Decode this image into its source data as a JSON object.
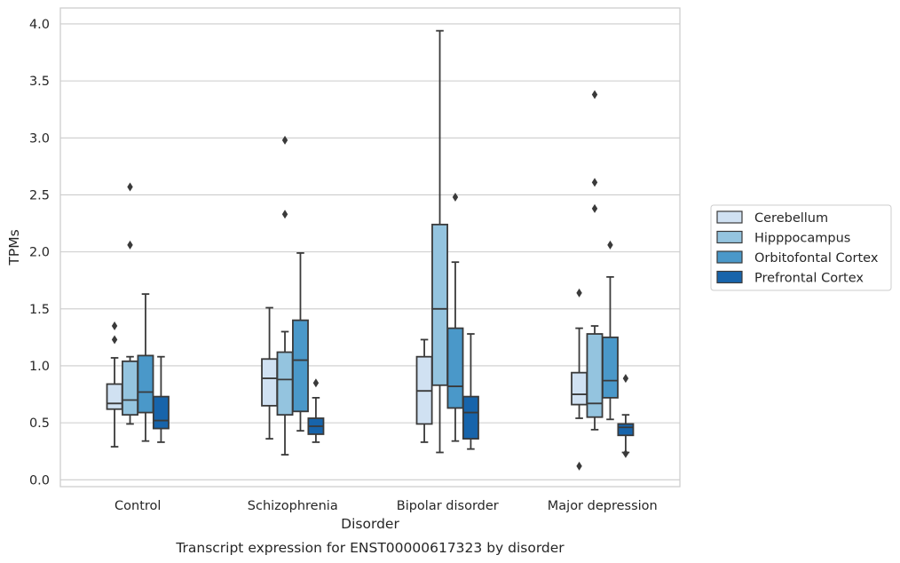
{
  "chart_data": {
    "type": "box",
    "title": "Transcript expression for ENST00000617323 by disorder",
    "xlabel": "Disorder",
    "ylabel": "TPMs",
    "ylim": [
      -0.06,
      4.14
    ],
    "yticks": [
      "0.0",
      "0.5",
      "1.0",
      "1.5",
      "2.0",
      "2.5",
      "3.0",
      "3.5",
      "4.0"
    ],
    "categories": [
      "Control",
      "Schizophrenia",
      "Bipolar disorder",
      "Major depression"
    ],
    "grid": true,
    "legend_position": "right",
    "series": [
      {
        "name": "Cerebellum",
        "color": "#d0e1f2",
        "boxes": [
          {
            "whislo": 0.29,
            "q1": 0.62,
            "med": 0.67,
            "q3": 0.84,
            "whishi": 1.07,
            "fliers": [
              1.23,
              1.35
            ]
          },
          {
            "whislo": 0.36,
            "q1": 0.65,
            "med": 0.89,
            "q3": 1.06,
            "whishi": 1.51,
            "fliers": []
          },
          {
            "whislo": 0.33,
            "q1": 0.49,
            "med": 0.78,
            "q3": 1.08,
            "whishi": 1.23,
            "fliers": []
          },
          {
            "whislo": 0.54,
            "q1": 0.66,
            "med": 0.75,
            "q3": 0.94,
            "whishi": 1.33,
            "fliers": [
              0.12,
              1.64
            ]
          }
        ]
      },
      {
        "name": "Hipppocampus",
        "color": "#94c4df",
        "boxes": [
          {
            "whislo": 0.49,
            "q1": 0.57,
            "med": 0.7,
            "q3": 1.04,
            "whishi": 1.08,
            "fliers": [
              2.06,
              2.57
            ]
          },
          {
            "whislo": 0.22,
            "q1": 0.57,
            "med": 0.88,
            "q3": 1.12,
            "whishi": 1.3,
            "fliers": [
              2.33,
              2.98
            ]
          },
          {
            "whislo": 0.24,
            "q1": 0.83,
            "med": 1.5,
            "q3": 2.24,
            "whishi": 3.94,
            "fliers": []
          },
          {
            "whislo": 0.44,
            "q1": 0.55,
            "med": 0.67,
            "q3": 1.28,
            "whishi": 1.35,
            "fliers": [
              2.38,
              2.61,
              3.38
            ]
          }
        ]
      },
      {
        "name": "Orbitofontal Cortex",
        "color": "#4a98c9",
        "boxes": [
          {
            "whislo": 0.34,
            "q1": 0.59,
            "med": 0.77,
            "q3": 1.09,
            "whishi": 1.63,
            "fliers": []
          },
          {
            "whislo": 0.43,
            "q1": 0.6,
            "med": 1.05,
            "q3": 1.4,
            "whishi": 1.99,
            "fliers": []
          },
          {
            "whislo": 0.34,
            "q1": 0.63,
            "med": 0.82,
            "q3": 1.33,
            "whishi": 1.91,
            "fliers": [
              2.48
            ]
          },
          {
            "whislo": 0.53,
            "q1": 0.72,
            "med": 0.87,
            "q3": 1.25,
            "whishi": 1.78,
            "fliers": [
              2.06
            ]
          }
        ]
      },
      {
        "name": "Prefrontal Cortex",
        "color": "#1764ab",
        "boxes": [
          {
            "whislo": 0.33,
            "q1": 0.45,
            "med": 0.52,
            "q3": 0.73,
            "whishi": 1.08,
            "fliers": []
          },
          {
            "whislo": 0.33,
            "q1": 0.4,
            "med": 0.47,
            "q3": 0.54,
            "whishi": 0.72,
            "fliers": [
              0.85
            ]
          },
          {
            "whislo": 0.27,
            "q1": 0.36,
            "med": 0.59,
            "q3": 0.73,
            "whishi": 1.28,
            "fliers": []
          },
          {
            "whislo": 0.24,
            "q1": 0.39,
            "med": 0.46,
            "q3": 0.49,
            "whishi": 0.57,
            "fliers": [
              0.23,
              0.89
            ]
          }
        ]
      }
    ]
  }
}
